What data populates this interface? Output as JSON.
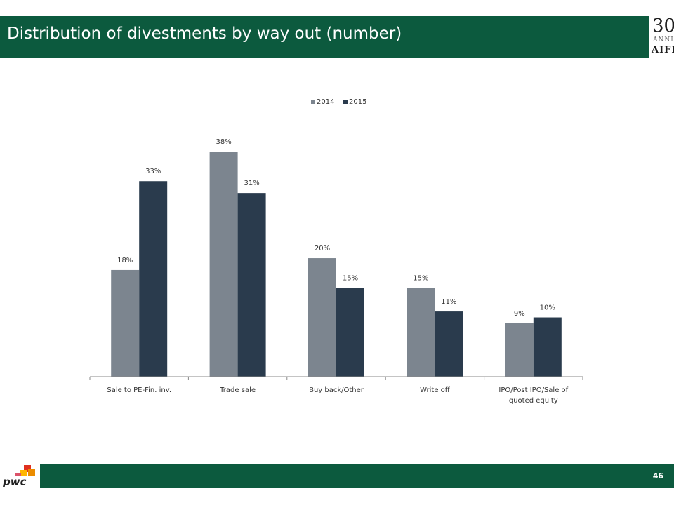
{
  "header": {
    "title": "Distribution of divestments by way out (number)"
  },
  "logo": {
    "number": "30",
    "word": "ANNI",
    "brand": "AIFI"
  },
  "footer": {
    "page_number": "46",
    "brand": "pwc"
  },
  "colors": {
    "brand_green": "#0c5a3e",
    "series_2014": "#7c858f",
    "series_2015": "#2a3b4d"
  },
  "chart_data": {
    "type": "bar",
    "categories": [
      [
        "Sale to PE-Fin. inv."
      ],
      [
        "Trade sale"
      ],
      [
        "Buy back/Other"
      ],
      [
        "Write off"
      ],
      [
        "IPO/Post IPO/Sale of",
        "quoted equity"
      ]
    ],
    "series": [
      {
        "name": "2014",
        "values": [
          18,
          38,
          20,
          15,
          9
        ],
        "labels": [
          "18%",
          "38%",
          "20%",
          "15%",
          "9%"
        ],
        "color": "#7c858f"
      },
      {
        "name": "2015",
        "values": [
          33,
          31,
          15,
          11,
          10
        ],
        "labels": [
          "33%",
          "31%",
          "15%",
          "11%",
          "10%"
        ],
        "color": "#2a3b4d"
      }
    ],
    "ylim": [
      0,
      38
    ],
    "legend": "top-center",
    "grid": false,
    "y_axis_visible": false
  }
}
